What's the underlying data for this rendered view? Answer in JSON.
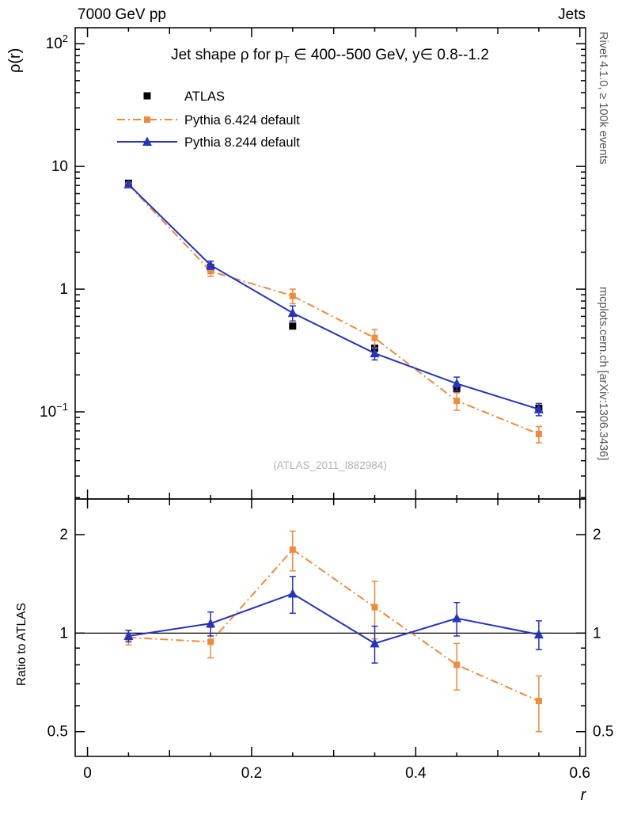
{
  "header": {
    "left": "7000 GeV pp",
    "right": "Jets"
  },
  "side_notes": {
    "top": "Rivet 4.1.0, ≥ 100k events",
    "bottom": "mcplots.cern.ch [arXiv:1306.3436]"
  },
  "watermark": "(ATLAS_2011_I882984)",
  "title": {
    "full": "Jet shape ρ for p_T ∈ 400--500 GeV, y∈ 0.8--1.2",
    "pre": "Jet shape ρ for p",
    "sub": "T",
    "post": " ∈ 400--500 GeV, y∈ 0.8--1.2"
  },
  "axis_labels": {
    "y_main": "ρ(r)",
    "y_ratio": "Ratio to ATLAS",
    "x": "r"
  },
  "colors": {
    "atlas": "#000000",
    "pythia6": "#f08a3c",
    "pythia8": "#2633bd"
  },
  "chart_data": [
    {
      "type": "scatter",
      "panel": "main",
      "title": "Jet shape ρ for p_T ∈ 400--500 GeV, y∈ 0.8--1.2",
      "xlabel": "r",
      "ylabel": "ρ(r)",
      "yscale": "log",
      "xlim": [
        -0.015,
        0.607
      ],
      "ylim": [
        0.0195,
        135
      ],
      "xticks": [
        {
          "v": 0,
          "label": "0"
        },
        {
          "v": 0.2,
          "label": "0.2"
        },
        {
          "v": 0.4,
          "label": "0.4"
        },
        {
          "v": 0.6,
          "label": "0.6"
        }
      ],
      "yticks": [
        {
          "v": 100,
          "base": "10",
          "exp": "2"
        },
        {
          "v": 10,
          "base": "10",
          "exp": ""
        },
        {
          "v": 1,
          "base": "1",
          "exp": ""
        },
        {
          "v": 0.1,
          "base": "10",
          "exp": "−1"
        }
      ],
      "x": [
        0.05,
        0.15,
        0.25,
        0.35,
        0.45,
        0.55
      ],
      "series": [
        {
          "name": "ATLAS",
          "marker": "square",
          "line": "none",
          "color": "#000000",
          "values": [
            7.3,
            1.5,
            0.5,
            0.33,
            0.155,
            0.107
          ],
          "errors": [
            0.25,
            0.07,
            0.025,
            0.018,
            0.01,
            0.006
          ]
        },
        {
          "name": "Pythia 6.424 default",
          "marker": "square",
          "line": "dashdot",
          "color": "#f08a3c",
          "values": [
            7.1,
            1.4,
            0.88,
            0.4,
            0.123,
            0.066
          ],
          "errors": [
            0.3,
            0.13,
            0.12,
            0.07,
            0.02,
            0.01
          ]
        },
        {
          "name": "Pythia 8.244 default",
          "marker": "triangle",
          "line": "solid",
          "color": "#2633bd",
          "values": [
            7.15,
            1.57,
            0.64,
            0.3,
            0.17,
            0.105
          ],
          "errors": [
            0.3,
            0.12,
            0.09,
            0.035,
            0.022,
            0.012
          ]
        }
      ]
    },
    {
      "type": "scatter",
      "panel": "ratio",
      "ylabel": "Ratio to ATLAS",
      "yscale": "log",
      "xlim": [
        -0.015,
        0.607
      ],
      "ylim": [
        0.42,
        2.57
      ],
      "reference": 1,
      "xticks": [
        {
          "v": 0,
          "label": "0"
        },
        {
          "v": 0.2,
          "label": "0.2"
        },
        {
          "v": 0.4,
          "label": "0.4"
        },
        {
          "v": 0.6,
          "label": "0.6"
        }
      ],
      "yticks": [
        {
          "v": 2,
          "label": "2"
        },
        {
          "v": 1,
          "label": "1"
        },
        {
          "v": 0.5,
          "label": "0.5"
        }
      ],
      "x": [
        0.05,
        0.15,
        0.25,
        0.35,
        0.45,
        0.55
      ],
      "series": [
        {
          "name": "Pythia 6.424 default",
          "marker": "square",
          "line": "dashdot",
          "color": "#f08a3c",
          "values": [
            0.97,
            0.94,
            1.8,
            1.2,
            0.8,
            0.62
          ],
          "errors": [
            0.05,
            0.1,
            0.25,
            0.24,
            0.13,
            0.12
          ]
        },
        {
          "name": "Pythia 8.244 default",
          "marker": "triangle",
          "line": "solid",
          "color": "#2633bd",
          "values": [
            0.98,
            1.07,
            1.32,
            0.93,
            1.11,
            0.99
          ],
          "errors": [
            0.04,
            0.09,
            0.17,
            0.12,
            0.13,
            0.1
          ]
        }
      ]
    }
  ]
}
